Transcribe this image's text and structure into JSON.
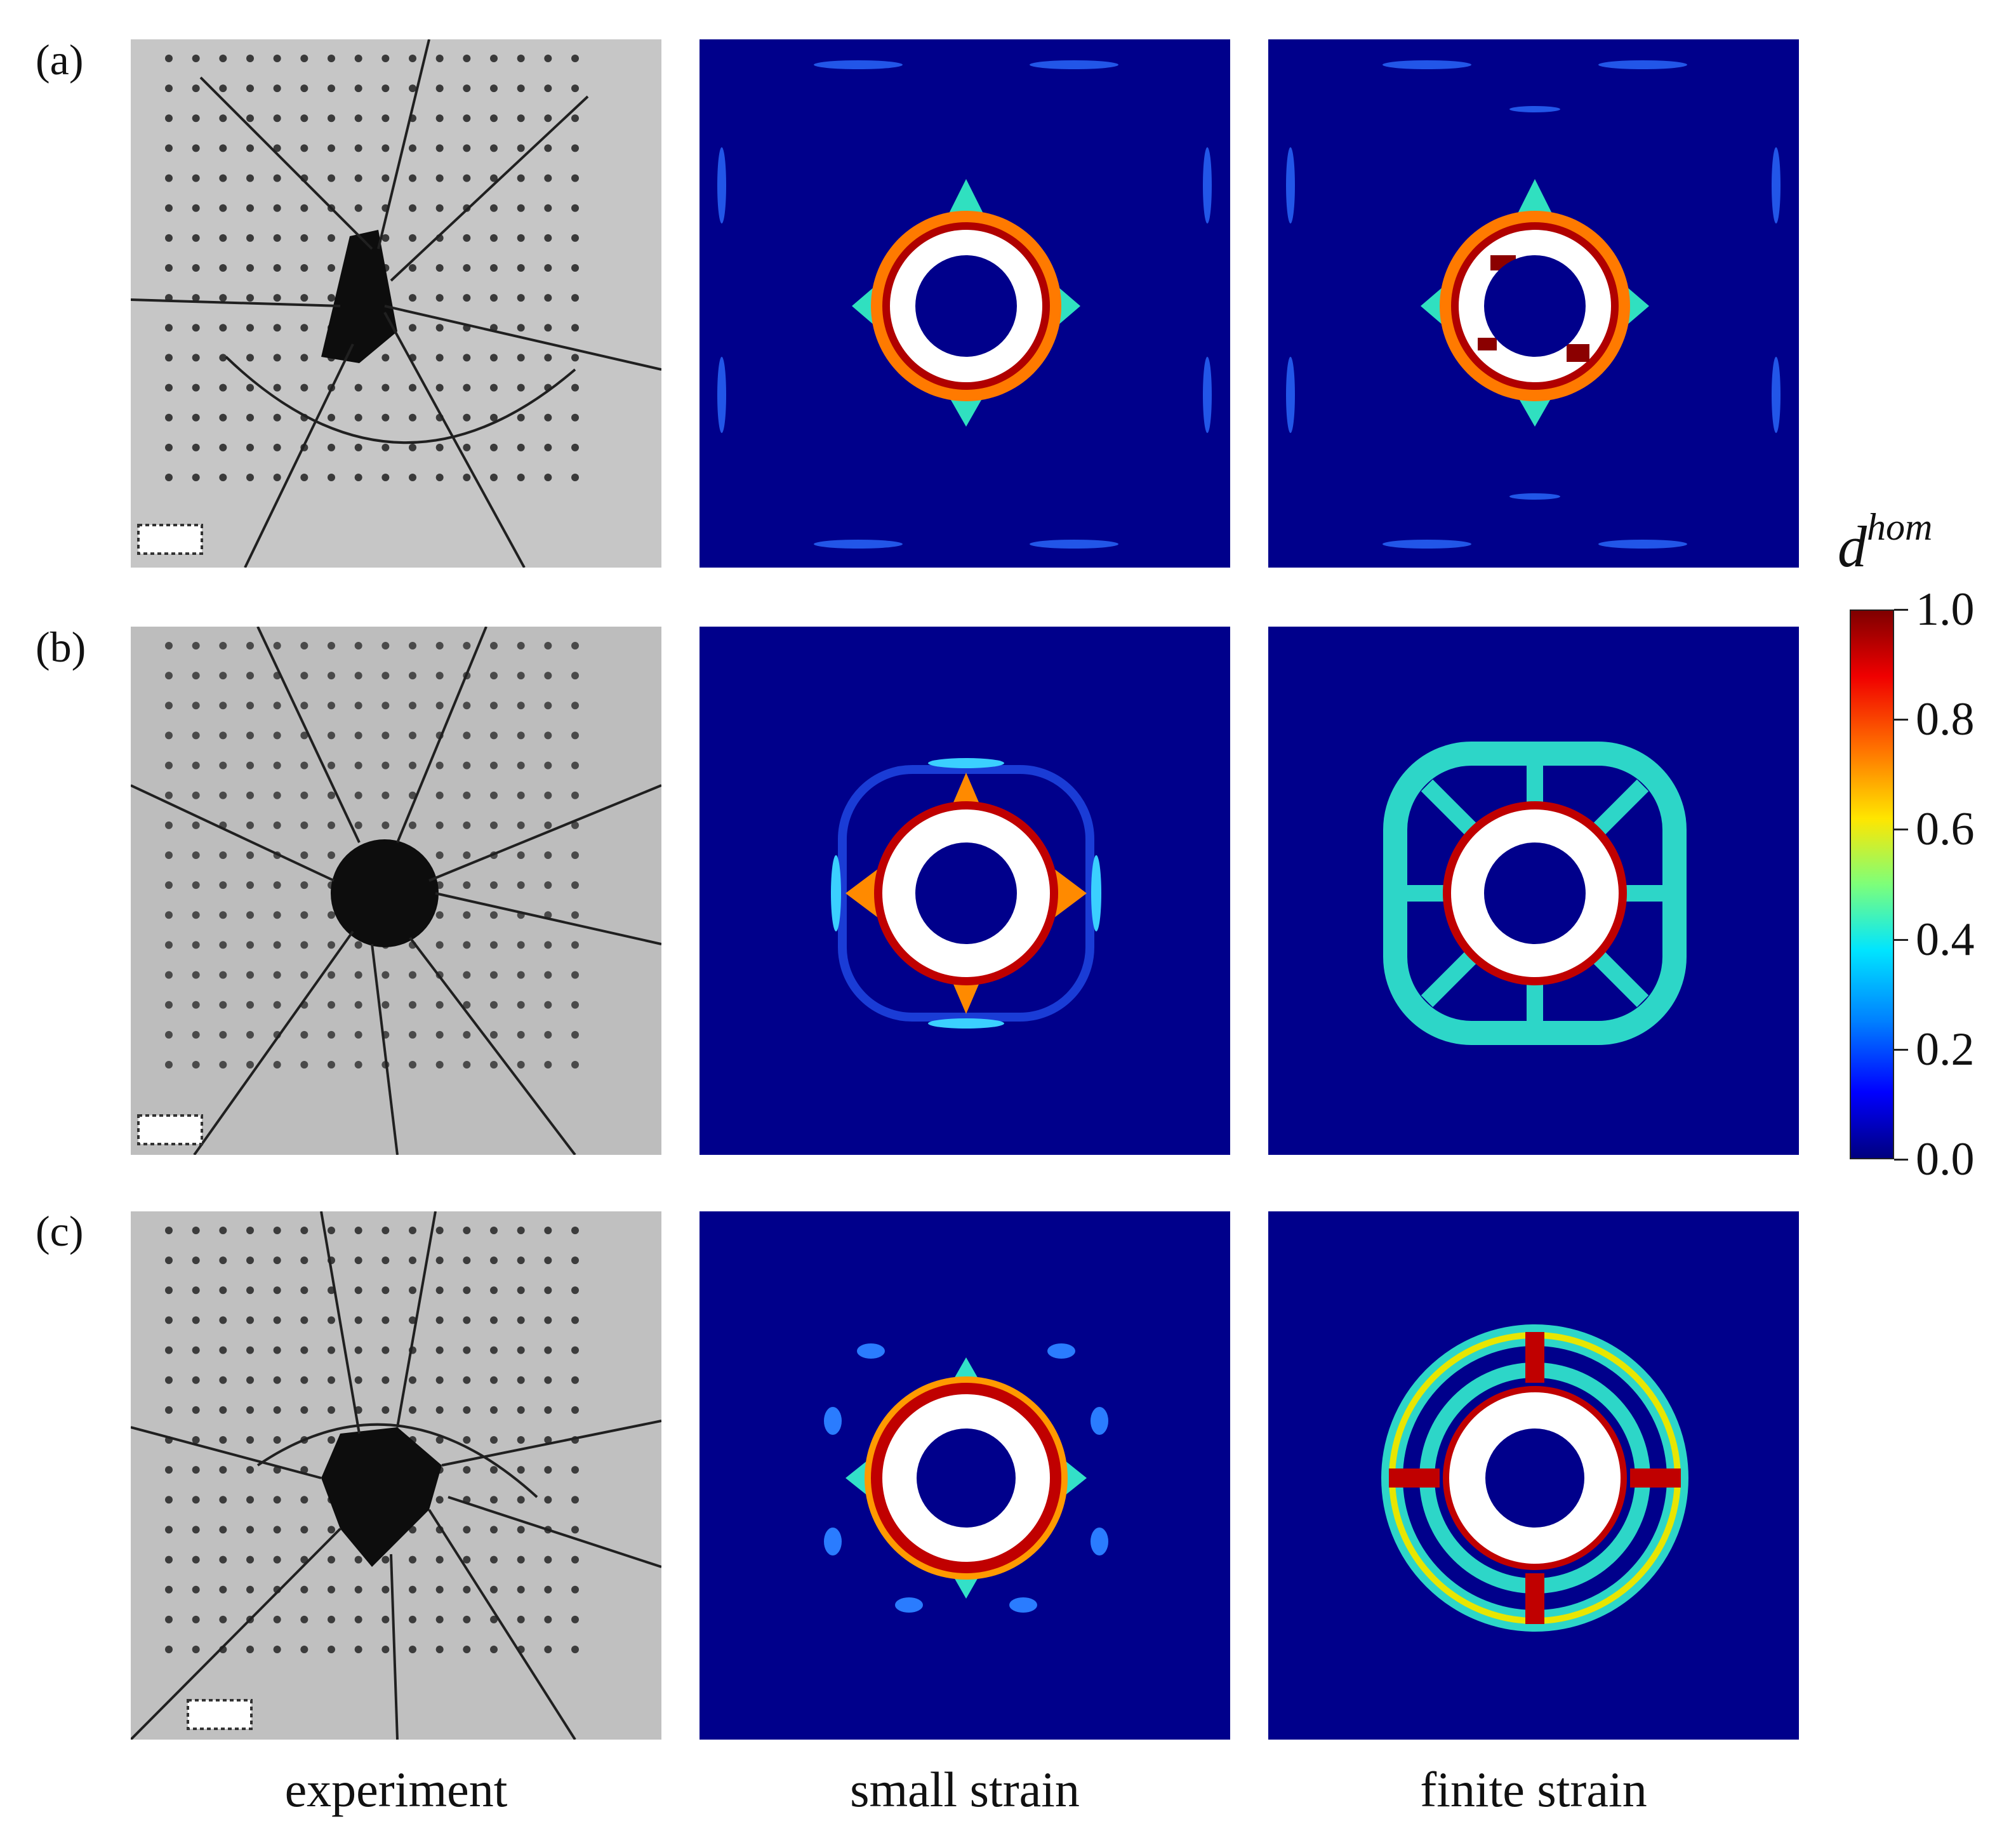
{
  "rows": [
    {
      "label": "(a)"
    },
    {
      "label": "(b)"
    },
    {
      "label": "(c)"
    }
  ],
  "columns": [
    {
      "label": "experiment"
    },
    {
      "label": "small strain"
    },
    {
      "label": "finite strain"
    }
  ],
  "colorbar": {
    "symbol": "d",
    "superscript": "hom",
    "min": 0.0,
    "max": 1.0,
    "ticks": [
      "0.0",
      "0.2",
      "0.4",
      "0.6",
      "0.8",
      "1.0"
    ],
    "colormap": "jet"
  },
  "colors": {
    "background_damage": "#00008b",
    "full_damage": "#7f0000",
    "eroded": "#ffffff",
    "specimen_grey": "#c4c4c4"
  }
}
